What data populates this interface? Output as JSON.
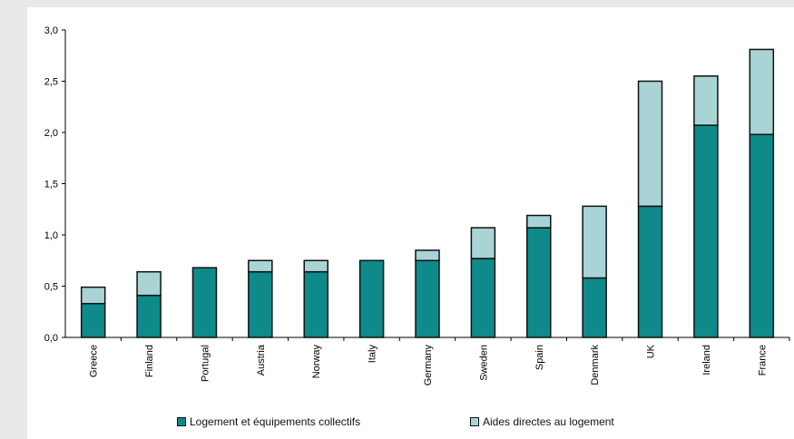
{
  "chart_data": {
    "type": "bar",
    "stacked": true,
    "categories": [
      "Greece",
      "Finland",
      "Portugal",
      "Austria",
      "Norway",
      "Italy",
      "Germany",
      "Sweden",
      "Spain",
      "Denmark",
      "UK",
      "Ireland",
      "France"
    ],
    "series": [
      {
        "name": "Logement et équipements collectifs",
        "color": "#0e8a8a",
        "values": [
          0.33,
          0.41,
          0.68,
          0.64,
          0.64,
          0.75,
          0.75,
          0.77,
          1.07,
          0.58,
          1.28,
          2.07,
          1.98
        ]
      },
      {
        "name": "Aides directes au logement",
        "color": "#a8d4d6",
        "values": [
          0.16,
          0.23,
          0.0,
          0.11,
          0.11,
          0.0,
          0.1,
          0.3,
          0.12,
          0.7,
          1.22,
          0.48,
          0.83
        ]
      }
    ],
    "y_ticks": [
      "0,0",
      "0,5",
      "1,0",
      "1,5",
      "2,0",
      "2,5",
      "3,0"
    ],
    "ylim": [
      0,
      3.0
    ],
    "grid": false,
    "legend_position": "bottom"
  }
}
